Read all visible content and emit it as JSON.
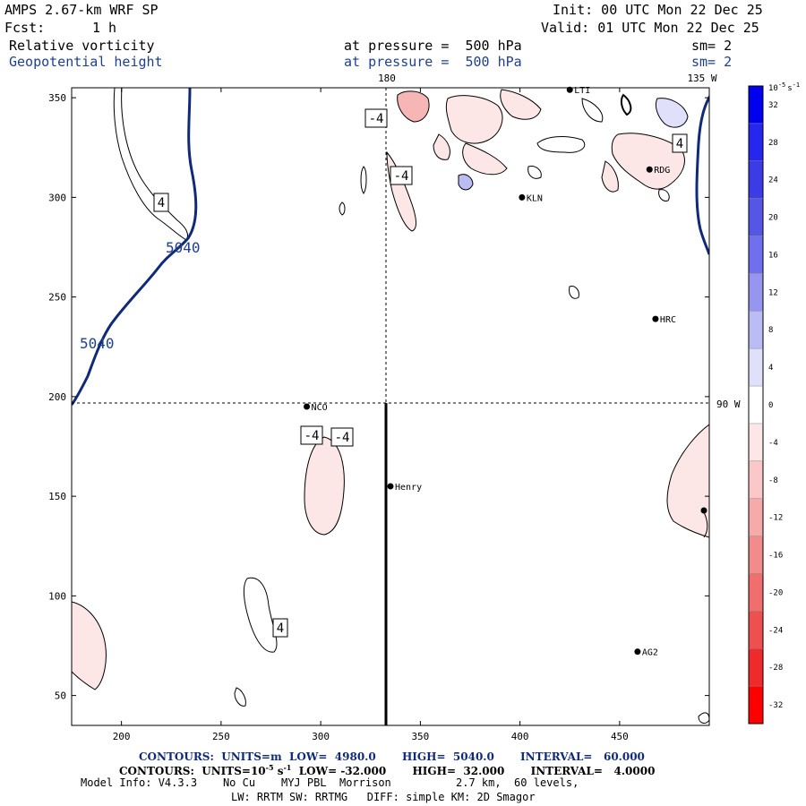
{
  "header": {
    "model": "AMPS 2.67-km WRF SP",
    "init": "Init: 00 UTC Mon 22 Dec 25",
    "fcst_label": "Fcst:",
    "fcst_value": "1 h",
    "valid": "Valid: 01 UTC Mon 22 Dec 25",
    "field1": "Relative vorticity",
    "field1_level": "at pressure =  500 hPa",
    "field1_sm": "sm= 2",
    "field2": "Geopotential height",
    "field2_level": "at pressure =  500 hPa",
    "field2_sm": "sm= 2"
  },
  "map": {
    "meridian_labels": [
      "180",
      "135 W",
      "90 W"
    ],
    "x_ticks": [
      "200",
      "250",
      "300",
      "350",
      "400",
      "450"
    ],
    "y_ticks": [
      "50",
      "100",
      "150",
      "200",
      "250",
      "300",
      "350"
    ],
    "height_contour_labels": [
      "5040",
      "5040"
    ],
    "vorticity_labels": [
      "-4",
      "-4",
      "-4",
      "-4",
      "4",
      "4",
      "4"
    ],
    "stations": [
      {
        "name": "NCO",
        "x": 293,
        "y": 195
      },
      {
        "name": "Henry",
        "x": 335,
        "y": 155
      },
      {
        "name": "KLN",
        "x": 401,
        "y": 300
      },
      {
        "name": "HRC",
        "x": 468,
        "y": 239
      },
      {
        "name": "RDG",
        "x": 465,
        "y": 314
      },
      {
        "name": "AG2",
        "x": 459,
        "y": 72
      },
      {
        "name": "LTI",
        "x": 425,
        "y": 354
      }
    ]
  },
  "colorbar": {
    "unit": "10",
    "unit_exp": "-5",
    "unit_suffix": "s",
    "unit_suffix_exp": "-1",
    "ticks": [
      "32",
      "28",
      "24",
      "20",
      "16",
      "12",
      "8",
      "4",
      "0",
      "-4",
      "-8",
      "-12",
      "-16",
      "-20",
      "-24",
      "-28",
      "-32"
    ],
    "colors": [
      "#0000ee",
      "#2626ee",
      "#3c3ce6",
      "#5656e6",
      "#7070ee",
      "#9696f0",
      "#bcbcf4",
      "#e0e0fa",
      "#ffffff",
      "#fce6e6",
      "#fac8c8",
      "#f6aaaa",
      "#f28c8c",
      "#f06e6e",
      "#ee5050",
      "#ee2a2a",
      "#ff0000"
    ]
  },
  "footer": {
    "line1": "CONTOURS:  UNITS=m  LOW=  4980.0       HIGH=  5040.0       INTERVAL=   60.000",
    "line2_a": "CONTOURS:  UNITS=10",
    "line2_exp": "-5",
    "line2_b": " s",
    "line2_exp2": "-1",
    "line2_c": "  LOW= -32.000       HIGH=  32.000       INTERVAL=   4.0000",
    "line3": "Model Info: V4.3.3    No Cu    MYJ PBL  Morrison          2.7 km,  60 levels,",
    "line4": "LW: RRTM SW: RRTMG   DIFF: simple KM: 2D Smagor"
  }
}
